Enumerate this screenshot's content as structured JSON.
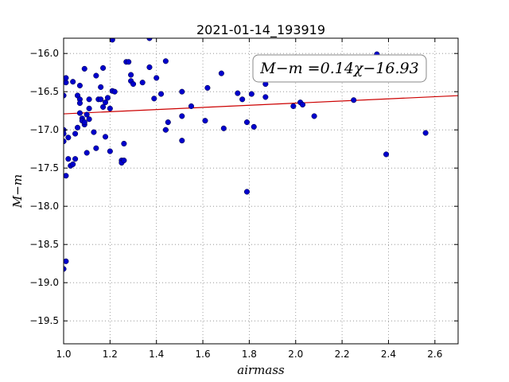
{
  "chart_data": {
    "type": "scatter",
    "title": "2021-01-14_193919",
    "xlabel": "airmass",
    "ylabel": "M−m",
    "xlim": [
      1.0,
      2.7
    ],
    "ylim": [
      -19.8,
      -15.8
    ],
    "y_inverted": true,
    "grid": true,
    "xticks": [
      1.0,
      1.2,
      1.4,
      1.6,
      1.8,
      2.0,
      2.2,
      2.4,
      2.6
    ],
    "xtick_labels": [
      "1.0",
      "1.2",
      "1.4",
      "1.6",
      "1.8",
      "2.0",
      "2.2",
      "2.4",
      "2.6"
    ],
    "yticks": [
      -16.0,
      -16.5,
      -17.0,
      -17.5,
      -18.0,
      -18.5,
      -19.0,
      -19.5
    ],
    "ytick_labels": [
      "−16.0",
      "−16.5",
      "−17.0",
      "−17.5",
      "−18.0",
      "−18.5",
      "−19.0",
      "−19.5"
    ],
    "annotation": "M−m =0.14χ−16.93",
    "colors": {
      "points": "#0000cc",
      "fit_line": "#cc0000",
      "grid": "#888888"
    },
    "fit_line": {
      "slope": 0.14,
      "intercept": -16.93,
      "x_range": [
        1.0,
        2.7
      ]
    },
    "points": [
      {
        "x": 1.0,
        "y": -16.55
      },
      {
        "x": 1.0,
        "y": -17.0
      },
      {
        "x": 1.0,
        "y": -17.05
      },
      {
        "x": 1.0,
        "y": -17.15
      },
      {
        "x": 1.0,
        "y": -18.82
      },
      {
        "x": 1.01,
        "y": -16.38
      },
      {
        "x": 1.01,
        "y": -16.32
      },
      {
        "x": 1.01,
        "y": -17.6
      },
      {
        "x": 1.01,
        "y": -18.72
      },
      {
        "x": 1.02,
        "y": -17.1
      },
      {
        "x": 1.02,
        "y": -17.38
      },
      {
        "x": 1.03,
        "y": -17.47
      },
      {
        "x": 1.04,
        "y": -17.45
      },
      {
        "x": 1.04,
        "y": -16.37
      },
      {
        "x": 1.05,
        "y": -17.38
      },
      {
        "x": 1.05,
        "y": -17.05
      },
      {
        "x": 1.06,
        "y": -16.97
      },
      {
        "x": 1.06,
        "y": -16.55
      },
      {
        "x": 1.07,
        "y": -16.6
      },
      {
        "x": 1.07,
        "y": -16.65
      },
      {
        "x": 1.07,
        "y": -16.42
      },
      {
        "x": 1.07,
        "y": -16.78
      },
      {
        "x": 1.08,
        "y": -16.85
      },
      {
        "x": 1.08,
        "y": -16.88
      },
      {
        "x": 1.09,
        "y": -16.93
      },
      {
        "x": 1.09,
        "y": -16.2
      },
      {
        "x": 1.09,
        "y": -16.9
      },
      {
        "x": 1.1,
        "y": -16.8
      },
      {
        "x": 1.1,
        "y": -17.3
      },
      {
        "x": 1.11,
        "y": -16.6
      },
      {
        "x": 1.11,
        "y": -16.72
      },
      {
        "x": 1.11,
        "y": -16.86
      },
      {
        "x": 1.13,
        "y": -17.03
      },
      {
        "x": 1.14,
        "y": -17.24
      },
      {
        "x": 1.14,
        "y": -16.29
      },
      {
        "x": 1.15,
        "y": -16.6
      },
      {
        "x": 1.16,
        "y": -16.44
      },
      {
        "x": 1.16,
        "y": -16.6
      },
      {
        "x": 1.17,
        "y": -16.19
      },
      {
        "x": 1.17,
        "y": -16.7
      },
      {
        "x": 1.18,
        "y": -17.09
      },
      {
        "x": 1.18,
        "y": -16.64
      },
      {
        "x": 1.19,
        "y": -16.58
      },
      {
        "x": 1.2,
        "y": -16.72
      },
      {
        "x": 1.2,
        "y": -17.28
      },
      {
        "x": 1.21,
        "y": -15.82
      },
      {
        "x": 1.21,
        "y": -16.49
      },
      {
        "x": 1.22,
        "y": -16.5
      },
      {
        "x": 1.25,
        "y": -17.4
      },
      {
        "x": 1.25,
        "y": -17.43
      },
      {
        "x": 1.26,
        "y": -17.4
      },
      {
        "x": 1.26,
        "y": -17.18
      },
      {
        "x": 1.27,
        "y": -16.11
      },
      {
        "x": 1.28,
        "y": -16.11
      },
      {
        "x": 1.29,
        "y": -16.28
      },
      {
        "x": 1.29,
        "y": -16.36
      },
      {
        "x": 1.3,
        "y": -16.4
      },
      {
        "x": 1.34,
        "y": -16.38
      },
      {
        "x": 1.37,
        "y": -15.8
      },
      {
        "x": 1.37,
        "y": -16.18
      },
      {
        "x": 1.39,
        "y": -16.59
      },
      {
        "x": 1.4,
        "y": -16.32
      },
      {
        "x": 1.42,
        "y": -16.53
      },
      {
        "x": 1.44,
        "y": -16.1
      },
      {
        "x": 1.44,
        "y": -17.0
      },
      {
        "x": 1.45,
        "y": -16.9
      },
      {
        "x": 1.51,
        "y": -16.82
      },
      {
        "x": 1.51,
        "y": -17.14
      },
      {
        "x": 1.51,
        "y": -16.5
      },
      {
        "x": 1.55,
        "y": -16.69
      },
      {
        "x": 1.61,
        "y": -16.88
      },
      {
        "x": 1.62,
        "y": -16.45
      },
      {
        "x": 1.68,
        "y": -16.26
      },
      {
        "x": 1.69,
        "y": -16.98
      },
      {
        "x": 1.75,
        "y": -16.52
      },
      {
        "x": 1.77,
        "y": -16.6
      },
      {
        "x": 1.79,
        "y": -16.9
      },
      {
        "x": 1.79,
        "y": -17.81
      },
      {
        "x": 1.81,
        "y": -16.53
      },
      {
        "x": 1.82,
        "y": -16.96
      },
      {
        "x": 1.87,
        "y": -16.4
      },
      {
        "x": 1.87,
        "y": -16.57
      },
      {
        "x": 1.99,
        "y": -16.69
      },
      {
        "x": 2.02,
        "y": -16.64
      },
      {
        "x": 2.03,
        "y": -16.67
      },
      {
        "x": 2.08,
        "y": -16.82
      },
      {
        "x": 2.25,
        "y": -16.61
      },
      {
        "x": 2.35,
        "y": -16.01
      },
      {
        "x": 2.39,
        "y": -17.32
      },
      {
        "x": 2.56,
        "y": -17.04
      }
    ]
  }
}
